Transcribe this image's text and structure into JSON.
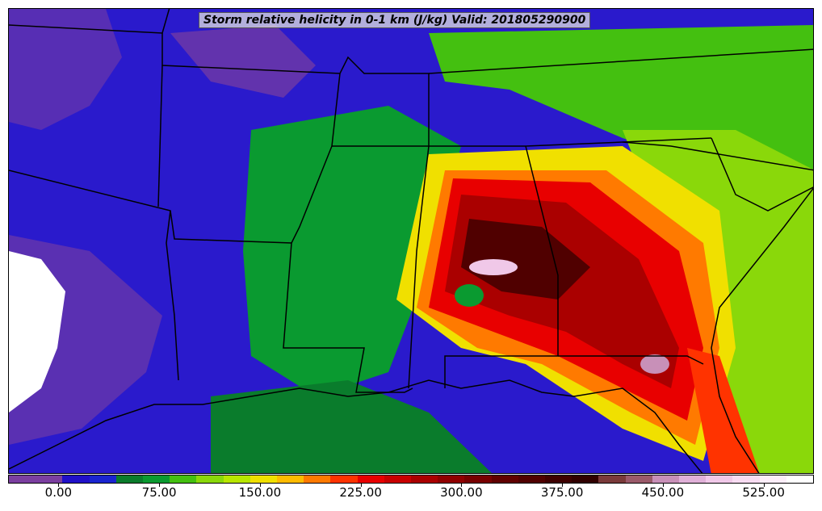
{
  "title": "Storm relative helicity in 0-1 km (J/kg) Valid: 201805290900",
  "colorbar": {
    "colors": [
      "#7b3fa0",
      "#7b3fa0",
      "#2010c8",
      "#1a24d0",
      "#0a7c2c",
      "#0a9a30",
      "#44c010",
      "#8ad80a",
      "#b8e600",
      "#f0e000",
      "#ffbb00",
      "#ff7a00",
      "#ff3300",
      "#e80000",
      "#c80000",
      "#aa0000",
      "#900000",
      "#780000",
      "#600000",
      "#500000",
      "#3e0000",
      "#300000",
      "#7a3a3a",
      "#9a5a6a",
      "#c890b8",
      "#e0b0d8",
      "#f0c8e8",
      "#f8dcf2",
      "#fdeefa",
      "#ffffff"
    ],
    "tick_labels": [
      "0.00",
      "75.00",
      "150.00",
      "225.00",
      "300.00",
      "375.00",
      "450.00",
      "525.00"
    ],
    "tick_values": [
      0,
      75,
      150,
      225,
      300,
      375,
      450,
      525
    ],
    "range": [
      -37.5,
      562.5
    ]
  },
  "map": {
    "background_color": "#2a1acc",
    "border_color": "#000000"
  }
}
